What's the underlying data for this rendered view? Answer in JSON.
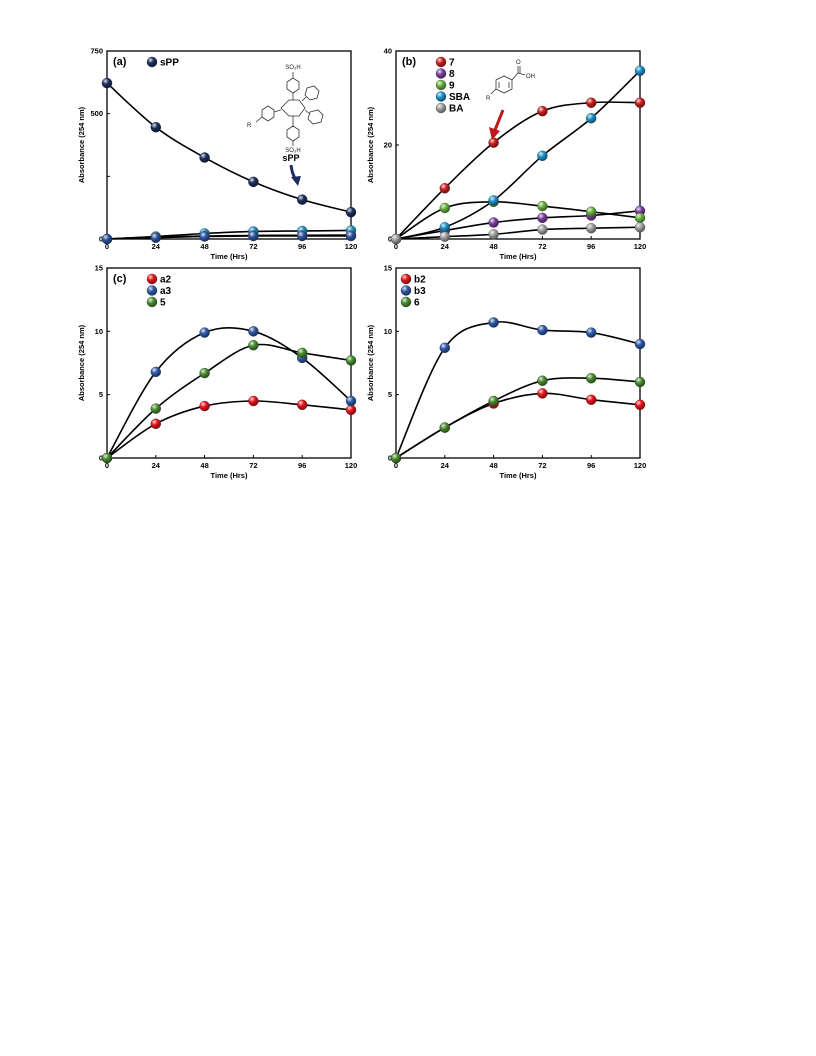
{
  "chart_data": [
    {
      "type": "line",
      "panel_label": "(a)",
      "x": [
        0,
        24,
        48,
        72,
        96,
        120
      ],
      "xlabel": "Time (Hrs)",
      "ylabel": "Absorbance (254 nm)",
      "xlim": [
        0,
        120
      ],
      "ylim": [
        0,
        750
      ],
      "yticks": [
        0,
        250,
        500,
        750
      ],
      "ytick_labels": [
        "0",
        "",
        "500",
        "750"
      ],
      "legend_position": "top-left",
      "series": [
        {
          "name": "sPP",
          "color": "#1b2f5e",
          "legend": true,
          "values": [
            622,
            446,
            325,
            228,
            157,
            107
          ]
        },
        {
          "name": "",
          "color": "#1e90c8",
          "legend": false,
          "values": [
            0,
            10,
            22,
            30,
            32,
            34
          ]
        },
        {
          "name": "",
          "color": "#a0a0a0",
          "legend": false,
          "values": [
            0,
            8,
            12,
            14,
            15,
            16
          ]
        },
        {
          "name": "",
          "color": "#2b56a0",
          "legend": false,
          "values": [
            0,
            5,
            10,
            12,
            12,
            12
          ]
        }
      ],
      "annotations": {
        "structure_labels": [
          "SO₃H",
          "SO₃H",
          "R"
        ],
        "arrow_label": "sPP",
        "arrow_color": "#1b2f5e"
      }
    },
    {
      "type": "line",
      "panel_label": "(b)",
      "x": [
        0,
        24,
        48,
        72,
        96,
        120
      ],
      "xlabel": "Time (Hrs)",
      "ylabel": "Absorbance (254 nm)",
      "xlim": [
        0,
        120
      ],
      "ylim": [
        0,
        40
      ],
      "yticks": [
        0,
        20,
        40
      ],
      "ytick_labels": [
        "0",
        "20",
        "40"
      ],
      "legend_position": "top-left",
      "series": [
        {
          "name": "7",
          "color": "#cc1f1f",
          "legend": true,
          "values": [
            0,
            10.8,
            20.5,
            27.2,
            29.0,
            29.0
          ]
        },
        {
          "name": "8",
          "color": "#7b3fa0",
          "legend": true,
          "values": [
            0,
            1.8,
            3.5,
            4.5,
            5.0,
            6.0
          ]
        },
        {
          "name": "9",
          "color": "#6ab040",
          "legend": true,
          "values": [
            0,
            6.6,
            7.9,
            7.0,
            5.8,
            4.5
          ]
        },
        {
          "name": "SBA",
          "color": "#1e90c8",
          "legend": true,
          "values": [
            0,
            2.5,
            8.2,
            17.7,
            25.7,
            35.8
          ]
        },
        {
          "name": "BA",
          "color": "#a0a0a0",
          "legend": true,
          "values": [
            0,
            0.5,
            1.0,
            2.0,
            2.3,
            2.5
          ]
        }
      ],
      "annotations": {
        "structure_labels": [
          "O",
          "OH",
          "R"
        ],
        "arrow_color": "#c0161c"
      }
    },
    {
      "type": "line",
      "panel_label": "(c)",
      "x": [
        0,
        24,
        48,
        72,
        96,
        120
      ],
      "xlabel": "Time (Hrs)",
      "ylabel": "Absorbance (254 nm)",
      "xlim": [
        0,
        120
      ],
      "ylim": [
        0,
        15
      ],
      "yticks": [
        0,
        5,
        10,
        15
      ],
      "ytick_labels": [
        "0",
        "5",
        "10",
        "15"
      ],
      "legend_position": "top-left",
      "series": [
        {
          "name": "a2",
          "color": "#e8141c",
          "legend": true,
          "values": [
            0,
            2.7,
            4.1,
            4.5,
            4.2,
            3.8
          ]
        },
        {
          "name": "a3",
          "color": "#2f5aa8",
          "legend": true,
          "values": [
            0,
            6.8,
            9.9,
            10.0,
            7.9,
            4.5
          ]
        },
        {
          "name": "5",
          "color": "#4a8c32",
          "legend": true,
          "values": [
            0,
            3.9,
            6.7,
            8.9,
            8.3,
            7.7
          ]
        }
      ]
    },
    {
      "type": "line",
      "panel_label": "",
      "x": [
        0,
        24,
        48,
        72,
        96,
        120
      ],
      "xlabel": "Time (Hrs)",
      "ylabel": "Absorbance (254 nm)",
      "xlim": [
        0,
        120
      ],
      "ylim": [
        0,
        15
      ],
      "yticks": [
        0,
        5,
        10,
        15
      ],
      "ytick_labels": [
        "0",
        "5",
        "10",
        "15"
      ],
      "legend_position": "top-left",
      "series": [
        {
          "name": "b2",
          "color": "#e8141c",
          "legend": true,
          "values": [
            0,
            2.4,
            4.3,
            5.1,
            4.6,
            4.2
          ]
        },
        {
          "name": "b3",
          "color": "#2f5aa8",
          "legend": true,
          "values": [
            0,
            8.7,
            10.7,
            10.1,
            9.9,
            9.0
          ]
        },
        {
          "name": "6",
          "color": "#4a8c32",
          "legend": true,
          "values": [
            0,
            2.4,
            4.5,
            6.1,
            6.3,
            6.0
          ]
        }
      ]
    }
  ]
}
